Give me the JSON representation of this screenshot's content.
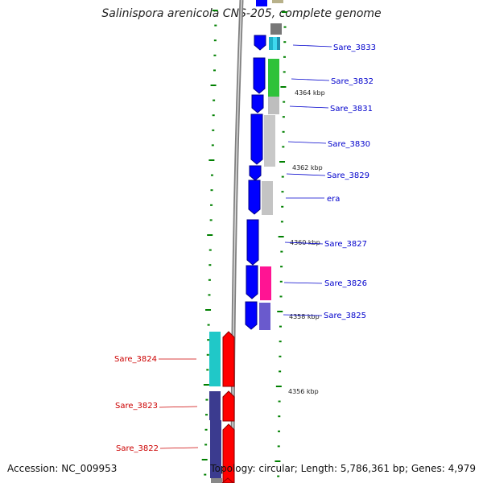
{
  "title": "Salinispora arenicola CNS-205, complete genome",
  "footer": {
    "accession": "Accession: NC_009953",
    "summary": "Topology: circular; Length: 5,786,361 bp; Genes: 4,979"
  },
  "colors": {
    "forward_label": "#0000cc",
    "reverse_label": "#cc0000",
    "tick": "#008000"
  },
  "scale_labels": [
    "4364 kbp",
    "4362 kbp",
    "4360 kbp",
    "4358 kbp",
    "4356 kbp"
  ],
  "forward_genes": [
    "Sare_3833",
    "Sare_3832",
    "Sare_3831",
    "Sare_3830",
    "Sare_3829",
    "era",
    "Sare_3827",
    "Sare_3826",
    "Sare_3825"
  ],
  "reverse_genes": [
    "Sare_3824",
    "Sare_3823",
    "Sare_3822"
  ]
}
